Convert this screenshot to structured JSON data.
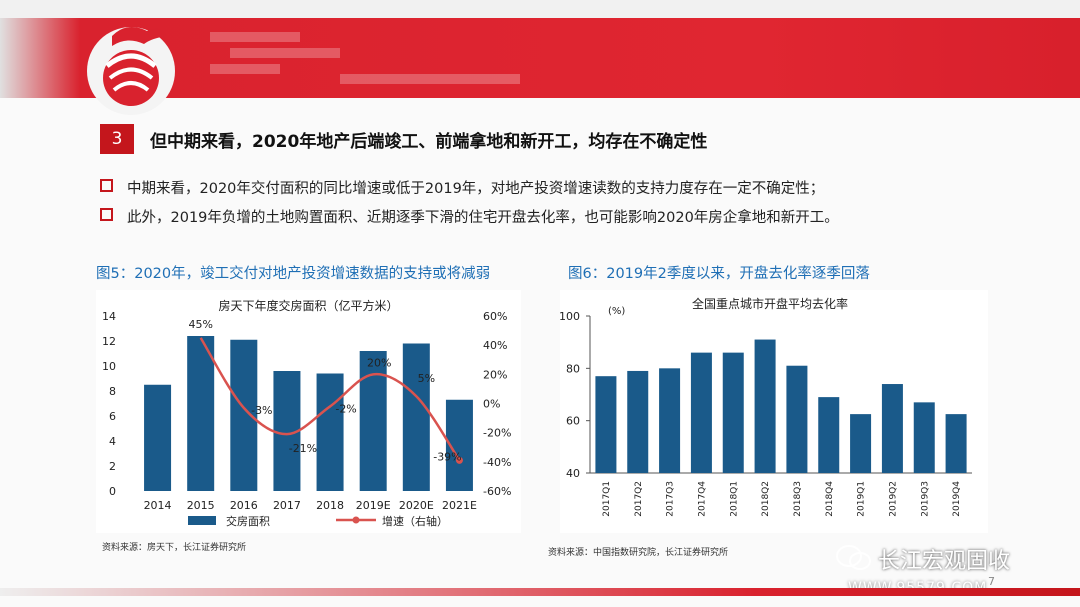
{
  "section": {
    "number": "3",
    "title": "但中期来看，2020年地产后端竣工、前端拿地和新开工，均存在不确定性"
  },
  "bullets": [
    "中期来看，2020年交付面积的同比增速或低于2019年，对地产投资增速读数的支持力度存在一定不确定性；",
    "此外，2019年负增的土地购置面积、近期逐季下滑的住宅开盘去化率，也可能影响2020年房企拿地和新开工。"
  ],
  "figures": {
    "fig5_title": "图5：2020年，竣工交付对地产投资增速数据的支持或将减弱",
    "fig6_title": "图6：2019年2季度以来，开盘去化率逐季回落",
    "fig5_source": "资料来源：房天下，长江证券研究所",
    "fig6_source": "资料来源：中国指数研究院，长江证券研究所"
  },
  "watermark": {
    "name": "长江宏观固收",
    "url": "WWW.95579.COM",
    "page": "7"
  },
  "colors": {
    "accent": "#c4161c",
    "bar": "#1a5a8a",
    "line": "#d9534f",
    "title_blue": "#1f6fb5"
  },
  "chart_data": [
    {
      "type": "bar+line",
      "title": "房天下年度交房面积（亿平方米）",
      "categories": [
        "2014",
        "2015",
        "2016",
        "2017",
        "2018",
        "2019E",
        "2020E",
        "2021E"
      ],
      "series": [
        {
          "name": "交房面积",
          "type": "bar",
          "axis": "left",
          "values": [
            8.5,
            12.4,
            12.1,
            9.6,
            9.4,
            11.2,
            11.8,
            7.3
          ]
        },
        {
          "name": "增速（右轴）",
          "type": "line",
          "axis": "right",
          "values": [
            null,
            45,
            -3,
            -21,
            -2,
            20,
            5,
            -39
          ],
          "labels": [
            "",
            "45%",
            "-3%",
            "-21%",
            "-2%",
            "20%",
            "5%",
            "-39%"
          ]
        }
      ],
      "ylim_left": [
        0,
        14
      ],
      "yticks_left": [
        "0",
        "2",
        "4",
        "6",
        "8",
        "10",
        "12",
        "14"
      ],
      "ylim_right": [
        -60,
        60
      ],
      "yticks_right": [
        "-60%",
        "-40%",
        "-20%",
        "0%",
        "20%",
        "40%",
        "60%"
      ]
    },
    {
      "type": "bar",
      "title": "全国重点城市开盘平均去化率",
      "unit": "(%)",
      "categories": [
        "2017Q1",
        "2017Q2",
        "2017Q3",
        "2017Q4",
        "2018Q1",
        "2018Q2",
        "2018Q3",
        "2018Q4",
        "2019Q1",
        "2019Q2",
        "2019Q3",
        "2019Q4"
      ],
      "values": [
        77,
        79,
        80,
        86,
        86,
        91,
        81,
        69,
        62.5,
        74,
        67,
        62.5
      ],
      "ylim": [
        40,
        100
      ],
      "yticks": [
        "40",
        "60",
        "80",
        "100"
      ]
    }
  ]
}
